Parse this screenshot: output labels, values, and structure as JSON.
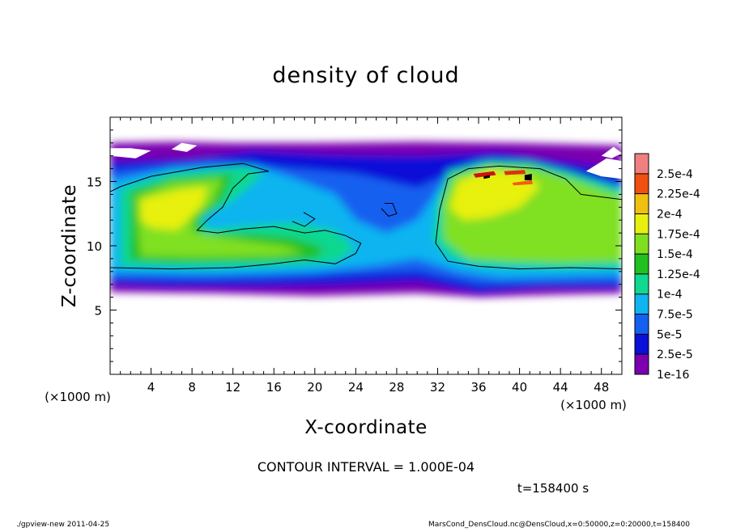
{
  "chart_data": {
    "type": "heatmap",
    "title": "density of cloud",
    "xlabel": "X-coordinate",
    "ylabel": "Z-coordinate",
    "x_unit": "(×1000 m)",
    "z_unit": "(×1000 m)",
    "xlim": [
      0,
      50
    ],
    "zlim": [
      0,
      20
    ],
    "x_ticks": [
      "4",
      "8",
      "12",
      "16",
      "20",
      "24",
      "28",
      "32",
      "36",
      "40",
      "44",
      "48"
    ],
    "z_ticks": [
      "5",
      "10",
      "15"
    ],
    "colorbar_labels": [
      "1e-16",
      "2.5e-5",
      "5e-5",
      "7.5e-5",
      "1e-4",
      "1.25e-4",
      "1.5e-4",
      "1.75e-4",
      "2e-4",
      "2.25e-4",
      "2.5e-4"
    ],
    "colorbar_colors": [
      "#7a00b0",
      "#0a10d8",
      "#1460f0",
      "#10b4f0",
      "#10d890",
      "#20c020",
      "#80e020",
      "#e8f010",
      "#f0c010",
      "#f05010",
      "#f08080"
    ],
    "contour_interval": "CONTOUR INTERVAL = 1.000E-04",
    "time_label": "t=158400 s",
    "grid": false
  },
  "footer": {
    "left": "./gpview-new  2011-04-25",
    "right": "MarsCond_DensCloud.nc@DensCloud,x=0:50000,z=0:20000,t=158400"
  }
}
